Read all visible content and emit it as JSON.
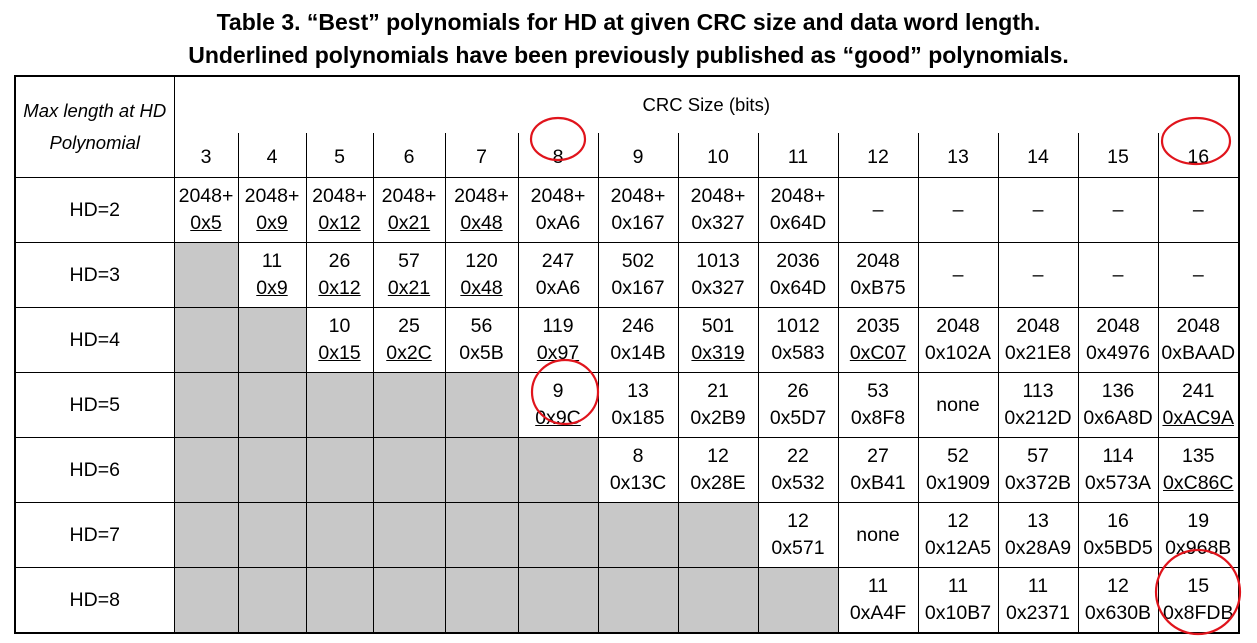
{
  "header": {
    "title_line1": "Table 3.  “Best” polynomials for HD at given CRC size and data word length.",
    "title_line2": "Underlined polynomials have been previously published as “good” polynomials."
  },
  "table": {
    "corner_line1": "Max length at HD",
    "corner_line2": "Polynomial",
    "group_header": "CRC Size (bits)",
    "columns": [
      "3",
      "4",
      "5",
      "6",
      "7",
      "8",
      "9",
      "10",
      "11",
      "12",
      "13",
      "14",
      "15",
      "16"
    ],
    "rows": [
      {
        "label": "HD=2",
        "cells": [
          {
            "length": "2048+",
            "polynomial": "0x5",
            "underlined": true
          },
          {
            "length": "2048+",
            "polynomial": "0x9",
            "underlined": true
          },
          {
            "length": "2048+",
            "polynomial": "0x12",
            "underlined": true
          },
          {
            "length": "2048+",
            "polynomial": "0x21",
            "underlined": true
          },
          {
            "length": "2048+",
            "polynomial": "0x48",
            "underlined": true
          },
          {
            "length": "2048+",
            "polynomial": "0xA6",
            "underlined": false
          },
          {
            "length": "2048+",
            "polynomial": "0x167",
            "underlined": false
          },
          {
            "length": "2048+",
            "polynomial": "0x327",
            "underlined": false
          },
          {
            "length": "2048+",
            "polynomial": "0x64D",
            "underlined": false
          },
          "–",
          "–",
          "–",
          "–",
          "–"
        ]
      },
      {
        "label": "HD=3",
        "cells": [
          null,
          {
            "length": "11",
            "polynomial": "0x9",
            "underlined": true
          },
          {
            "length": "26",
            "polynomial": "0x12",
            "underlined": true
          },
          {
            "length": "57",
            "polynomial": "0x21",
            "underlined": true
          },
          {
            "length": "120",
            "polynomial": "0x48",
            "underlined": true
          },
          {
            "length": "247",
            "polynomial": "0xA6",
            "underlined": false
          },
          {
            "length": "502",
            "polynomial": "0x167",
            "underlined": false
          },
          {
            "length": "1013",
            "polynomial": "0x327",
            "underlined": false
          },
          {
            "length": "2036",
            "polynomial": "0x64D",
            "underlined": false
          },
          {
            "length": "2048",
            "polynomial": "0xB75",
            "underlined": false
          },
          "–",
          "–",
          "–",
          "–"
        ]
      },
      {
        "label": "HD=4",
        "cells": [
          null,
          null,
          {
            "length": "10",
            "polynomial": "0x15",
            "underlined": true
          },
          {
            "length": "25",
            "polynomial": "0x2C",
            "underlined": true
          },
          {
            "length": "56",
            "polynomial": "0x5B",
            "underlined": false
          },
          {
            "length": "119",
            "polynomial": "0x97",
            "underlined": true
          },
          {
            "length": "246",
            "polynomial": "0x14B",
            "underlined": false
          },
          {
            "length": "501",
            "polynomial": "0x319",
            "underlined": true
          },
          {
            "length": "1012",
            "polynomial": "0x583",
            "underlined": false
          },
          {
            "length": "2035",
            "polynomial": "0xC07",
            "underlined": true
          },
          {
            "length": "2048",
            "polynomial": "0x102A",
            "underlined": false
          },
          {
            "length": "2048",
            "polynomial": "0x21E8",
            "underlined": false
          },
          {
            "length": "2048",
            "polynomial": "0x4976",
            "underlined": false
          },
          {
            "length": "2048",
            "polynomial": "0xBAAD",
            "underlined": false
          }
        ]
      },
      {
        "label": "HD=5",
        "cells": [
          null,
          null,
          null,
          null,
          null,
          {
            "length": "9",
            "polynomial": "0x9C",
            "underlined": true
          },
          {
            "length": "13",
            "polynomial": "0x185",
            "underlined": false
          },
          {
            "length": "21",
            "polynomial": "0x2B9",
            "underlined": false
          },
          {
            "length": "26",
            "polynomial": "0x5D7",
            "underlined": false
          },
          {
            "length": "53",
            "polynomial": "0x8F8",
            "underlined": false
          },
          "none",
          {
            "length": "113",
            "polynomial": "0x212D",
            "underlined": false
          },
          {
            "length": "136",
            "polynomial": "0x6A8D",
            "underlined": false
          },
          {
            "length": "241",
            "polynomial": "0xAC9A",
            "underlined": true
          }
        ]
      },
      {
        "label": "HD=6",
        "cells": [
          null,
          null,
          null,
          null,
          null,
          null,
          {
            "length": "8",
            "polynomial": "0x13C",
            "underlined": false
          },
          {
            "length": "12",
            "polynomial": "0x28E",
            "underlined": false
          },
          {
            "length": "22",
            "polynomial": "0x532",
            "underlined": false
          },
          {
            "length": "27",
            "polynomial": "0xB41",
            "underlined": false
          },
          {
            "length": "52",
            "polynomial": "0x1909",
            "underlined": false
          },
          {
            "length": "57",
            "polynomial": "0x372B",
            "underlined": false
          },
          {
            "length": "114",
            "polynomial": "0x573A",
            "underlined": false
          },
          {
            "length": "135",
            "polynomial": "0xC86C",
            "underlined": true
          }
        ]
      },
      {
        "label": "HD=7",
        "cells": [
          null,
          null,
          null,
          null,
          null,
          null,
          null,
          null,
          {
            "length": "12",
            "polynomial": "0x571",
            "underlined": false
          },
          "none",
          {
            "length": "12",
            "polynomial": "0x12A5",
            "underlined": false
          },
          {
            "length": "13",
            "polynomial": "0x28A9",
            "underlined": false
          },
          {
            "length": "16",
            "polynomial": "0x5BD5",
            "underlined": false
          },
          {
            "length": "19",
            "polynomial": "0x968B",
            "underlined": false
          }
        ]
      },
      {
        "label": "HD=8",
        "cells": [
          null,
          null,
          null,
          null,
          null,
          null,
          null,
          null,
          null,
          {
            "length": "11",
            "polynomial": "0xA4F",
            "underlined": false
          },
          {
            "length": "11",
            "polynomial": "0x10B7",
            "underlined": false
          },
          {
            "length": "11",
            "polynomial": "0x2371",
            "underlined": false
          },
          {
            "length": "12",
            "polynomial": "0x630B",
            "underlined": false
          },
          {
            "length": "15",
            "polynomial": "0x8FDB",
            "underlined": false
          }
        ]
      }
    ]
  }
}
